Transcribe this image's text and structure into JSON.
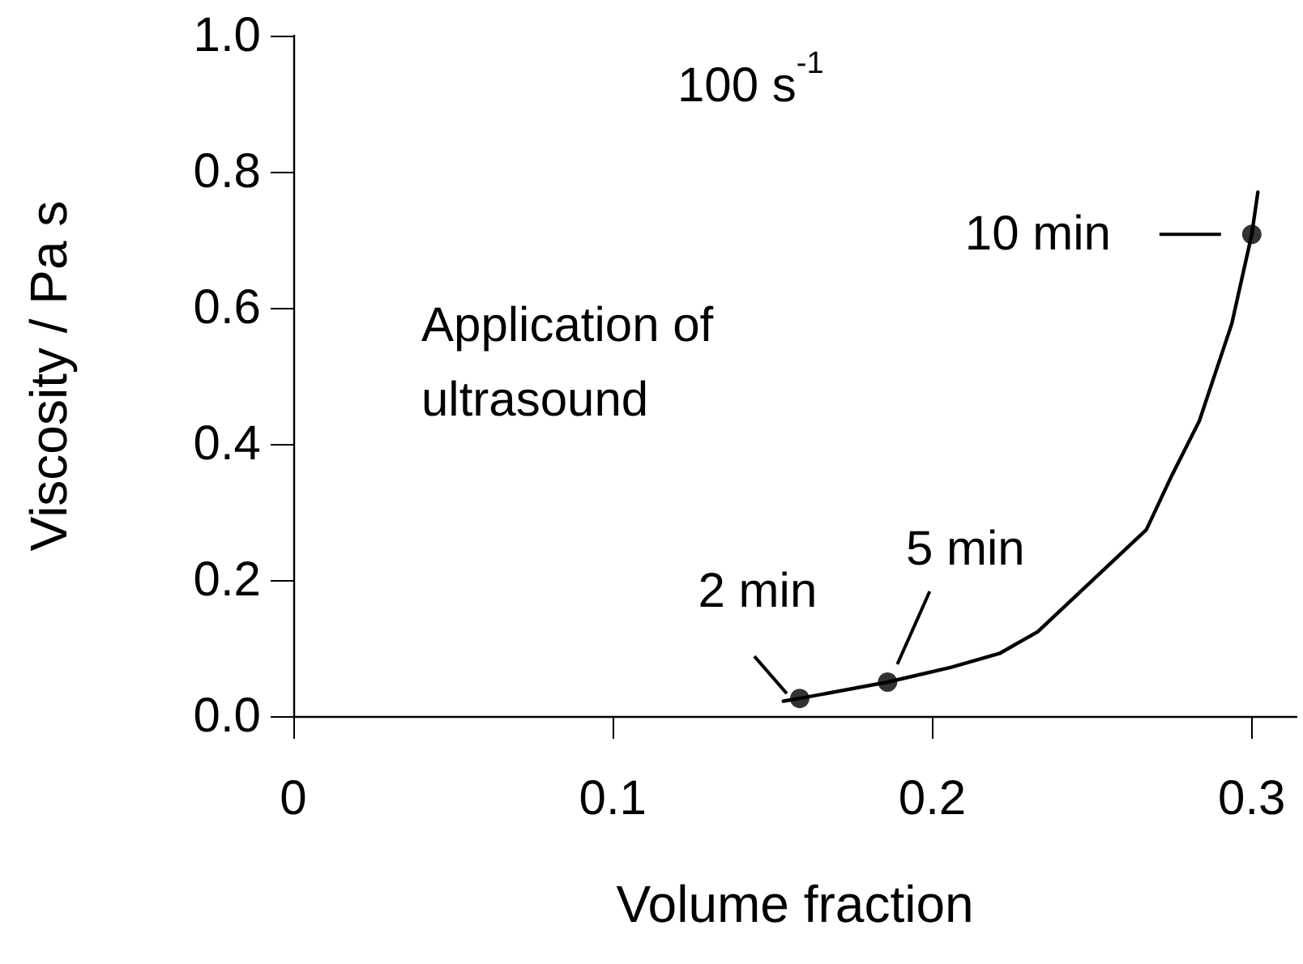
{
  "chart_data": {
    "type": "line",
    "xlabel": "Volume fraction",
    "ylabel": "Viscosity / Pa s",
    "xlim": [
      0,
      0.314
    ],
    "ylim": [
      0,
      1.0
    ],
    "xticks": [
      0,
      0.1,
      0.2,
      0.3
    ],
    "yticks": [
      {
        "value": 0,
        "label": "0.0"
      },
      {
        "value": 0.2,
        "label": "0.2"
      },
      {
        "value": 0.4,
        "label": "0.4"
      },
      {
        "value": 0.6,
        "label": "0.6"
      },
      {
        "value": 0.8,
        "label": "0.8"
      },
      {
        "value": 1.0,
        "label": "1.0"
      }
    ],
    "grid": false,
    "series": [
      {
        "color": "#000000",
        "marker": "none",
        "x": [
          0.1534,
          0.1585,
          0.186,
          0.206,
          0.221,
          0.233,
          0.267,
          0.275,
          0.2836,
          0.2937,
          0.3,
          0.3019
        ],
        "values": [
          0.022,
          0.026,
          0.05,
          0.072,
          0.092,
          0.124,
          0.274,
          0.354,
          0.434,
          0.576,
          0.708,
          0.77
        ]
      },
      {
        "type": "scatter",
        "color": "#000000",
        "marker": "circle",
        "x": [
          0.1585,
          0.186,
          0.3
        ],
        "values": [
          0.026,
          0.05,
          0.708
        ]
      }
    ],
    "annotations": [
      "100 s$^{-1}$",
      "Application of\nultrasound",
      {
        "text": "2 min",
        "x": 0.1585,
        "y": 0.026
      },
      {
        "text": "5 min",
        "x": 0.186,
        "y": 0.05
      },
      {
        "text": "10 min",
        "x": 0.3,
        "y": 0.708
      }
    ]
  }
}
